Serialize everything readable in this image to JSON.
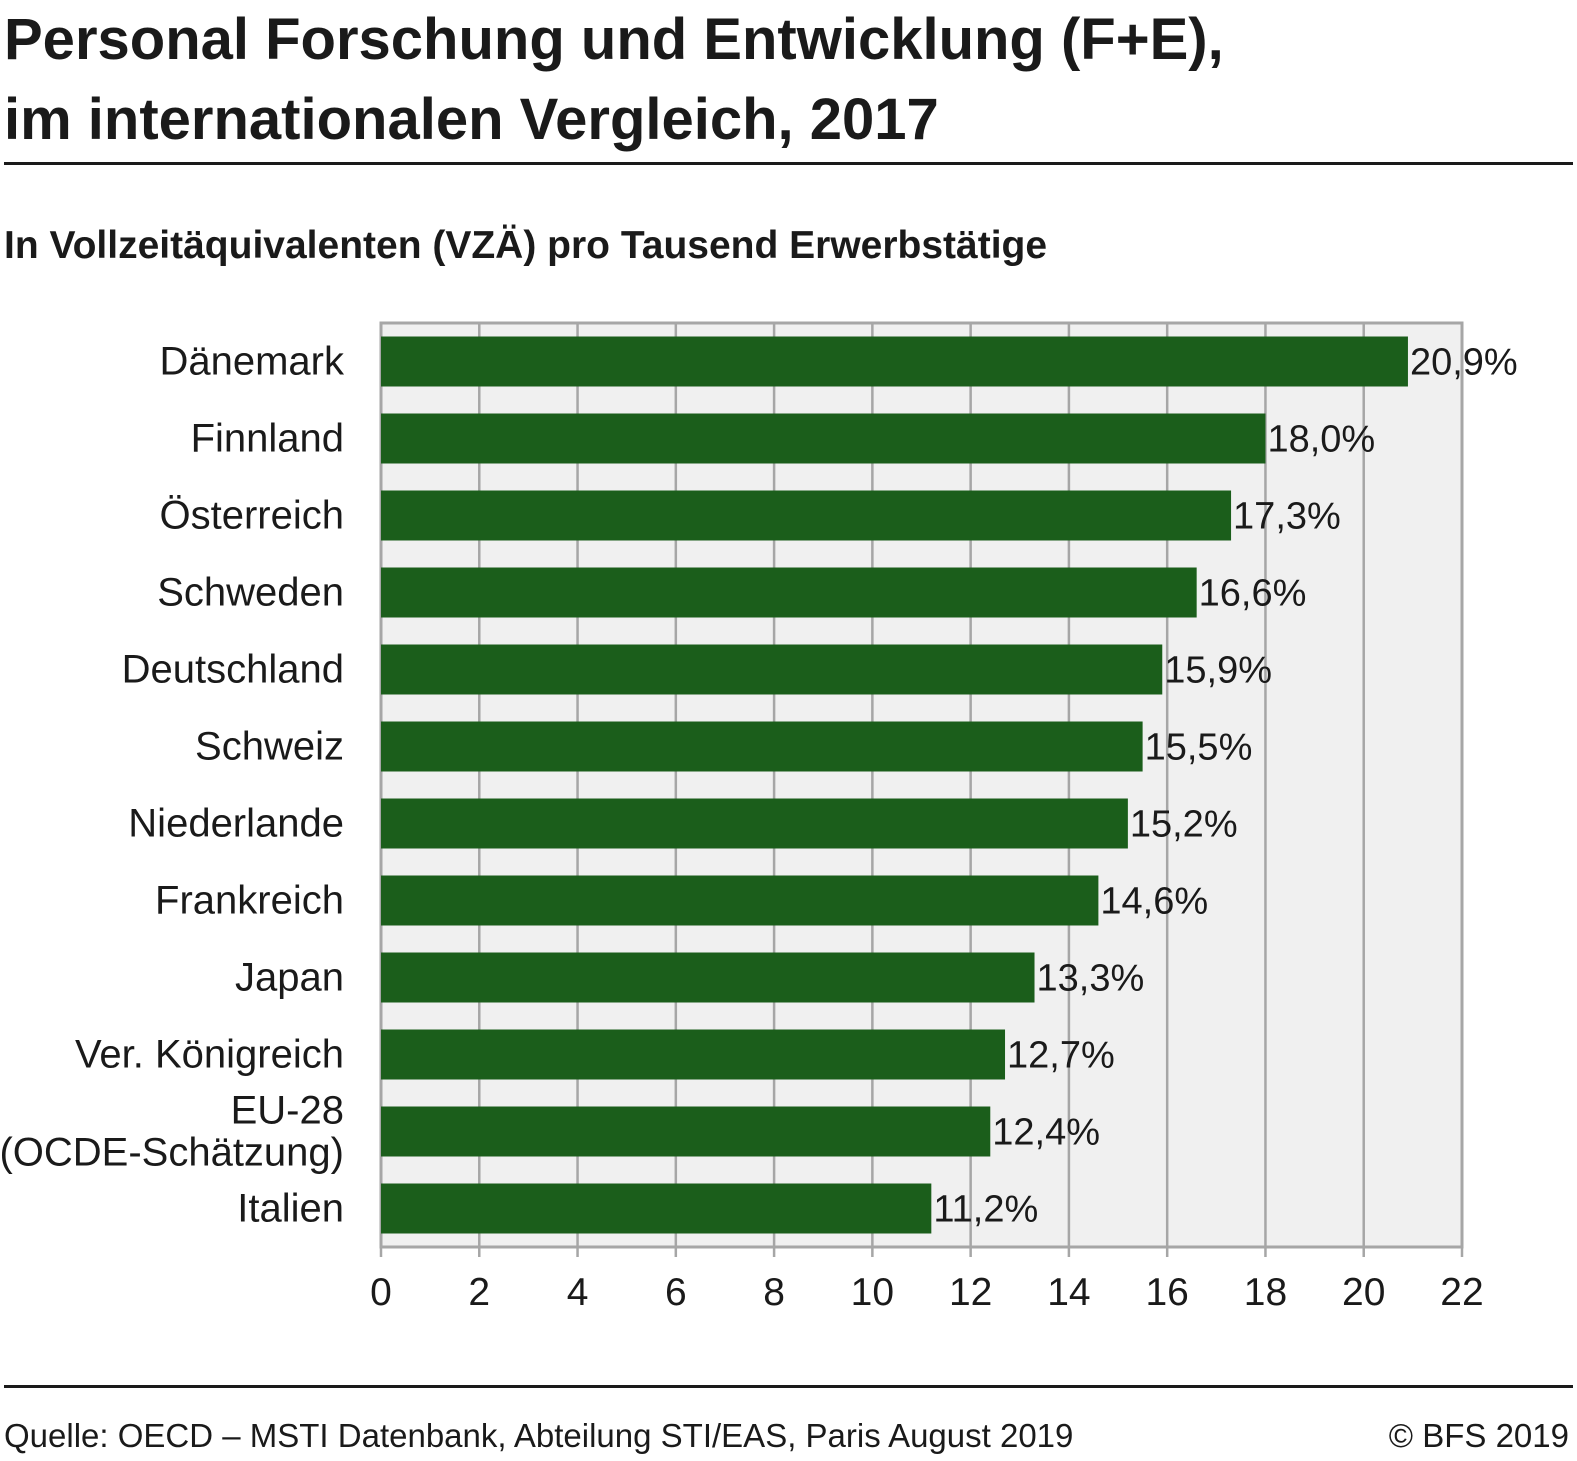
{
  "title_lines": [
    "Personal Forschung und Entwicklung (F+E),",
    "im internationalen Vergleich, 2017"
  ],
  "subtitle": "In Vollzeitäquivalenten (VZÄ) pro Tausend Erwerbstätige",
  "footer": {
    "source": "Quelle: OECD – MSTI Datenbank, Abteilung STI/EAS, Paris August 2019",
    "copyright": "© BFS 2019"
  },
  "colors": {
    "bar": "#1b5e1b",
    "plot_bg": "#f0f0f0",
    "grid": "#a6a6a6"
  },
  "chart_data": {
    "type": "bar",
    "orientation": "horizontal",
    "categories": [
      [
        "Dänemark"
      ],
      [
        "Finnland"
      ],
      [
        "Österreich"
      ],
      [
        "Schweden"
      ],
      [
        "Deutschland"
      ],
      [
        "Schweiz"
      ],
      [
        "Niederlande"
      ],
      [
        "Frankreich"
      ],
      [
        "Japan"
      ],
      [
        "Ver. Königreich"
      ],
      [
        "EU-28",
        "(OCDE-Schätzung)"
      ],
      [
        "Italien"
      ]
    ],
    "values": [
      20.9,
      18.0,
      17.3,
      16.6,
      15.9,
      15.5,
      15.2,
      14.6,
      13.3,
      12.7,
      12.4,
      11.2
    ],
    "data_labels": [
      "20,9%",
      "18,0%",
      "17,3%",
      "16,6%",
      "15,9%",
      "15,5%",
      "15,2%",
      "14,6%",
      "13,3%",
      "12,7%",
      "12,4%",
      "11,2%"
    ],
    "xlim": [
      0,
      22
    ],
    "xticks": [
      0,
      2,
      4,
      6,
      8,
      10,
      12,
      14,
      16,
      18,
      20,
      22
    ],
    "grid": true,
    "legend": "none"
  }
}
